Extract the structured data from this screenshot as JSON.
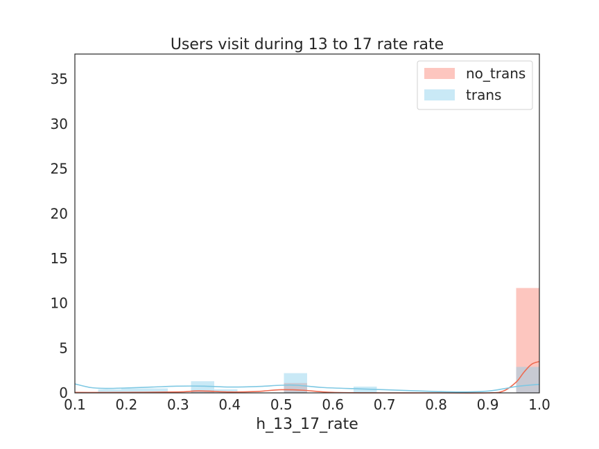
{
  "chart_data": {
    "type": "histogram",
    "title": "Users visit during 13 to 17 rate rate",
    "xlabel": "h_13_17_rate",
    "ylabel": "",
    "xlim": [
      0.1,
      1.0
    ],
    "ylim": [
      0,
      37.8
    ],
    "xticks": [
      "0.1",
      "0.2",
      "0.3",
      "0.4",
      "0.5",
      "0.6",
      "0.7",
      "0.8",
      "0.9",
      "1.0"
    ],
    "yticks": [
      "0",
      "5",
      "10",
      "15",
      "20",
      "25",
      "30",
      "35"
    ],
    "grid": false,
    "legend_position": "top-right",
    "bin_width": 0.045,
    "series": [
      {
        "name": "no_trans",
        "color": "#fa8072",
        "bins": [
          {
            "x0": 0.325,
            "x1": 0.37,
            "value": 0.3
          },
          {
            "x0": 0.505,
            "x1": 0.55,
            "value": 1.1
          },
          {
            "x0": 0.955,
            "x1": 1.0,
            "value": 11.7
          }
        ],
        "kde": [
          [
            0.1,
            0.05
          ],
          [
            0.2,
            0.05
          ],
          [
            0.3,
            0.1
          ],
          [
            0.34,
            0.22
          ],
          [
            0.4,
            0.1
          ],
          [
            0.45,
            0.15
          ],
          [
            0.5,
            0.35
          ],
          [
            0.54,
            0.3
          ],
          [
            0.6,
            0.05
          ],
          [
            0.7,
            0.0
          ],
          [
            0.8,
            0.0
          ],
          [
            0.9,
            0.0
          ],
          [
            0.93,
            0.2
          ],
          [
            0.955,
            1.2
          ],
          [
            0.97,
            2.3
          ],
          [
            0.985,
            3.2
          ],
          [
            1.0,
            3.5
          ]
        ]
      },
      {
        "name": "trans",
        "color": "#87ceeb",
        "bins": [
          {
            "x0": 0.145,
            "x1": 0.19,
            "value": 0.4
          },
          {
            "x0": 0.19,
            "x1": 0.235,
            "value": 0.5
          },
          {
            "x0": 0.235,
            "x1": 0.28,
            "value": 0.5
          },
          {
            "x0": 0.325,
            "x1": 0.37,
            "value": 1.3
          },
          {
            "x0": 0.37,
            "x1": 0.415,
            "value": 0.4
          },
          {
            "x0": 0.505,
            "x1": 0.55,
            "value": 2.2
          },
          {
            "x0": 0.64,
            "x1": 0.685,
            "value": 0.7
          },
          {
            "x0": 0.955,
            "x1": 1.0,
            "value": 2.9
          }
        ],
        "kde": [
          [
            0.1,
            1.0
          ],
          [
            0.13,
            0.6
          ],
          [
            0.16,
            0.5
          ],
          [
            0.2,
            0.55
          ],
          [
            0.25,
            0.65
          ],
          [
            0.3,
            0.75
          ],
          [
            0.35,
            0.75
          ],
          [
            0.4,
            0.65
          ],
          [
            0.45,
            0.7
          ],
          [
            0.5,
            0.85
          ],
          [
            0.53,
            0.85
          ],
          [
            0.58,
            0.6
          ],
          [
            0.65,
            0.45
          ],
          [
            0.7,
            0.35
          ],
          [
            0.75,
            0.25
          ],
          [
            0.8,
            0.15
          ],
          [
            0.85,
            0.1
          ],
          [
            0.9,
            0.2
          ],
          [
            0.93,
            0.45
          ],
          [
            0.96,
            0.75
          ],
          [
            1.0,
            0.95
          ]
        ]
      }
    ]
  }
}
